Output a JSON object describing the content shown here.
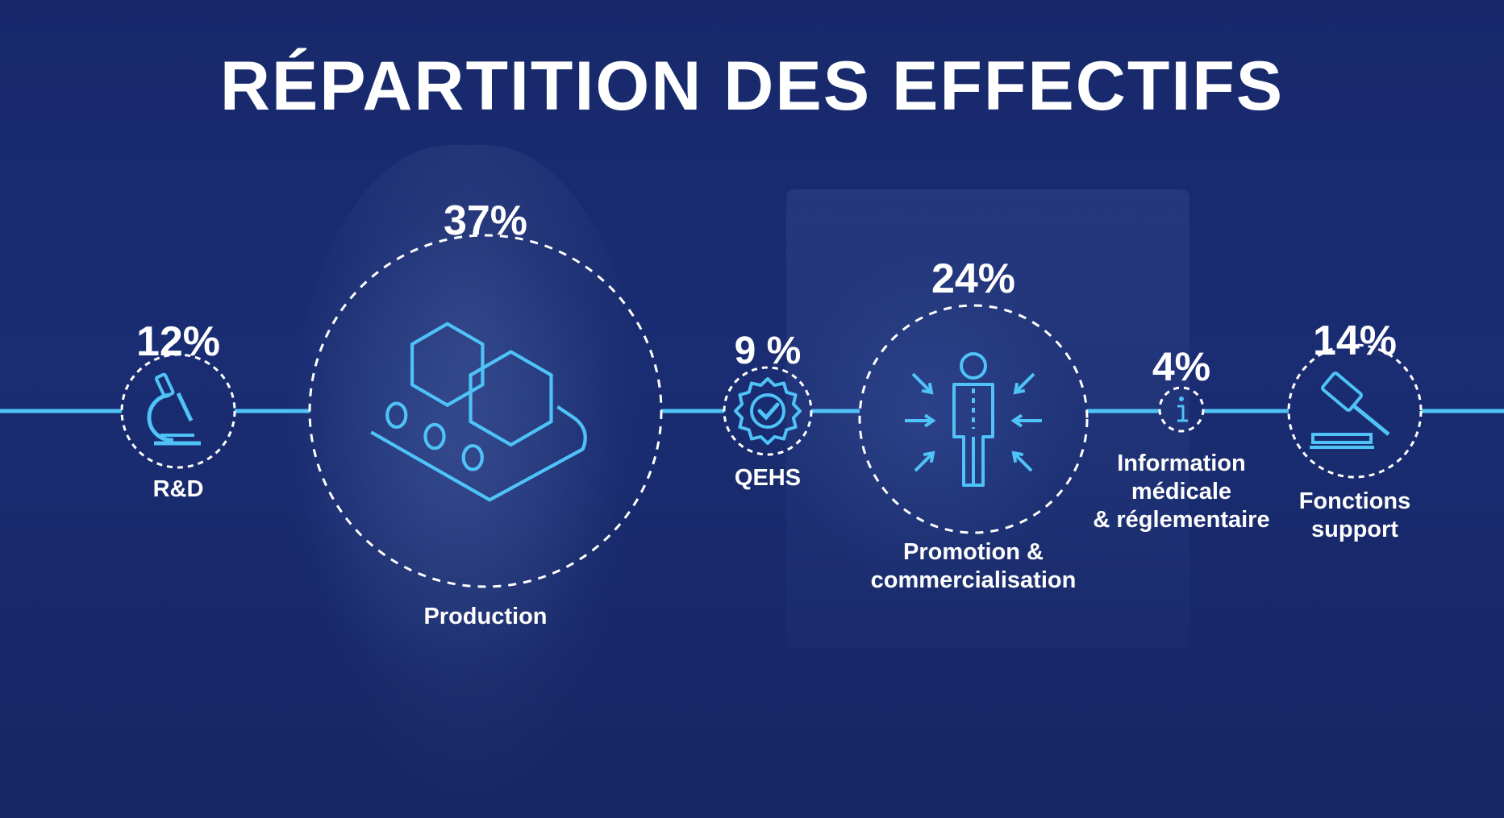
{
  "title": "RÉPARTITION DES EFFECTIFS",
  "colors": {
    "accent": "#4fc3f7",
    "text": "#ffffff",
    "background": "#17296b"
  },
  "chart_data": {
    "type": "bubble",
    "title": "RÉPARTITION DES EFFECTIFS",
    "unit": "%",
    "segments": [
      {
        "name": "R&D",
        "label_lines": [
          "R&D"
        ],
        "value": 12,
        "display": "12%",
        "icon": "microscope-icon"
      },
      {
        "name": "Production",
        "label_lines": [
          "Production"
        ],
        "value": 37,
        "display": "37%",
        "icon": "conveyor-icon"
      },
      {
        "name": "QEHS",
        "label_lines": [
          "QEHS"
        ],
        "value": 9,
        "display": "9 %",
        "icon": "quality-badge-icon"
      },
      {
        "name": "Promotion & commercialisation",
        "label_lines": [
          "Promotion &",
          "commercialisation"
        ],
        "value": 24,
        "display": "24%",
        "icon": "person-focus-icon"
      },
      {
        "name": "Information médicale & réglementaire",
        "label_lines": [
          "Information",
          "médicale",
          "& réglementaire"
        ],
        "value": 4,
        "display": "4%",
        "icon": "info-icon"
      },
      {
        "name": "Fonctions support",
        "label_lines": [
          "Fonctions",
          "support"
        ],
        "value": 14,
        "display": "14%",
        "icon": "gavel-icon"
      }
    ]
  }
}
